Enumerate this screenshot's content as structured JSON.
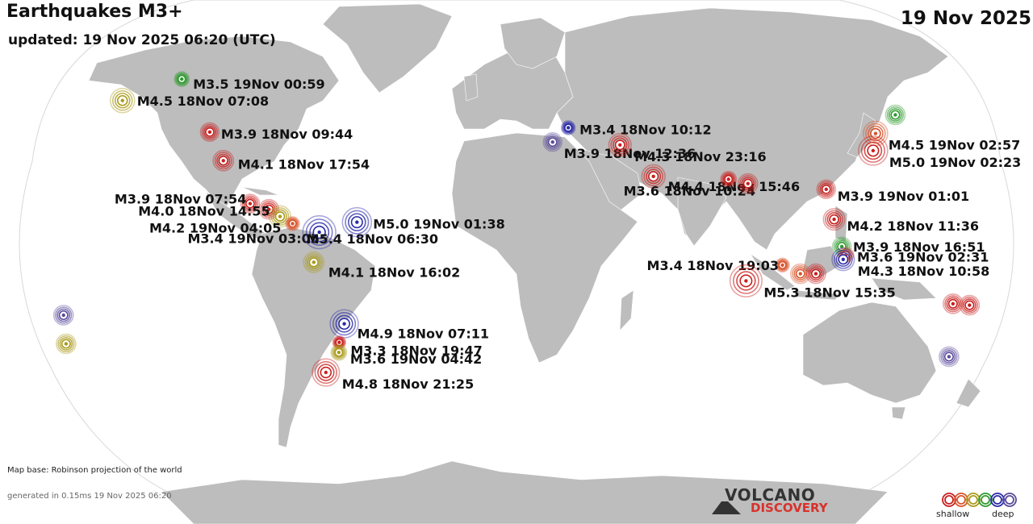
{
  "header": {
    "title": "Earthquakes M3+",
    "updated": "updated: 19 Nov 2025 06:20 (UTC)",
    "date": "19 Nov 2025"
  },
  "colors": {
    "ocean": "#ffffff",
    "land": "#bdbdbd",
    "shallow_red": "#c8201e",
    "orange": "#d9532a",
    "olive": "#a99a1a",
    "green": "#2e9a2e",
    "blue": "#2a2aa8",
    "purple": "#5a4a9a"
  },
  "quakes": [
    {
      "label": "M3.5 19Nov 00:59",
      "color": "green",
      "lon": -141,
      "lat": 62.5
    },
    {
      "label": "M4.5 18Nov 07:08",
      "color": "olive",
      "lon": -163,
      "lat": 55
    },
    {
      "label": "M3.9 18Nov 09:44",
      "color": "red",
      "lon": -124,
      "lat": 44
    },
    {
      "label": "M4.1 18Nov 17:54",
      "color": "red",
      "lon": -116.5,
      "lat": 34
    },
    {
      "label": "M3.9 18Nov 07:54",
      "color": "red",
      "lon": -104,
      "lat": 19
    },
    {
      "label": "M4.0 18Nov 14:55",
      "color": "red",
      "lon": -96.5,
      "lat": 17
    },
    {
      "label": "M4.2 19Nov 04:05",
      "color": "olive",
      "lon": -92,
      "lat": 14.5
    },
    {
      "label": "M3.4 19Nov 03:05",
      "color": "orange",
      "lon": -87,
      "lat": 12
    },
    {
      "label": "M5.4 18Nov 06:30",
      "color": "blue",
      "lon": -76.5,
      "lat": 9
    },
    {
      "label": "M5.0 19Nov 01:38",
      "color": "blue",
      "lon": -62,
      "lat": 12.5
    },
    {
      "label": "M4.1 18Nov 16:02",
      "color": "olive",
      "lon": -78.5,
      "lat": -1.5
    },
    {
      "label": "M4.9 18Nov 07:11",
      "color": "blue",
      "lon": -67.5,
      "lat": -23
    },
    {
      "label": "M3.3 18Nov 19:47",
      "color": "red",
      "lon": -70,
      "lat": -29.5
    },
    {
      "label": "M3.6 19Nov 04:42",
      "color": "olive",
      "lon": -70.5,
      "lat": -33
    },
    {
      "label": "M4.8 18Nov 21:25",
      "color": "red",
      "lon": -76.5,
      "lat": -40
    },
    {
      "label": "M3.4 18Nov 10:12",
      "color": "blue",
      "lon": 21,
      "lat": 45.5
    },
    {
      "label": "M3.9 18Nov 12:36",
      "color": "purple",
      "lon": 14.5,
      "lat": 40.5
    },
    {
      "label": "M4.3 18Nov 23:16",
      "color": "red",
      "lon": 41.5,
      "lat": 39.5
    },
    {
      "label": "M4.4 18Nov 15:46",
      "color": "red",
      "lon": 54,
      "lat": 28.5
    },
    {
      "label": "M3.6 18Nov 10:24",
      "color": "red",
      "lon": 83.5,
      "lat": 27.5
    },
    {
      "label": "",
      "color": "red",
      "lon": 91,
      "lat": 26
    },
    {
      "label": "M3.9 19Nov 01:01",
      "color": "red",
      "lon": 121.5,
      "lat": 24
    },
    {
      "label": "M4.5 19Nov 02:57",
      "color": "orange",
      "lon": 145,
      "lat": 43.5
    },
    {
      "label": "",
      "color": "green",
      "lon": 155,
      "lat": 50
    },
    {
      "label": "M5.0 19Nov 02:23",
      "color": "red",
      "lon": 142.5,
      "lat": 37.5
    },
    {
      "label": "M4.2 18Nov 11:36",
      "color": "red",
      "lon": 123.5,
      "lat": 13.5
    },
    {
      "label": "M3.9 18Nov 16:51",
      "color": "green",
      "lon": 126,
      "lat": 4
    },
    {
      "label": "M3.6 19Nov 02:31",
      "color": "orange",
      "lon": 127.5,
      "lat": 1
    },
    {
      "label": "M4.3 18Nov 10:58",
      "color": "blue",
      "lon": 126.5,
      "lat": -0.5
    },
    {
      "label": "M3.4 18Nov 19:03",
      "color": "orange",
      "lon": 103,
      "lat": -2.5
    },
    {
      "label": "",
      "color": "orange",
      "lon": 110,
      "lat": -5.5
    },
    {
      "label": "",
      "color": "red",
      "lon": 116,
      "lat": -5.5
    },
    {
      "label": "M5.3 18Nov 15:35",
      "color": "red",
      "lon": 89,
      "lat": -8
    },
    {
      "label": "",
      "color": "red",
      "lon": 170,
      "lat": -16
    },
    {
      "label": "",
      "color": "red",
      "lon": 176.5,
      "lat": -16.5
    },
    {
      "label": "",
      "color": "purple",
      "lon": -177,
      "lat": -20
    },
    {
      "label": "",
      "color": "olive",
      "lon": -178,
      "lat": -30
    },
    {
      "label": "",
      "color": "purple",
      "lon": 172,
      "lat": -34.5
    }
  ],
  "footer": {
    "credit": "Map base: Robinson projection of the world",
    "generated": "generated in 0.15ms 19 Nov 2025 06:20",
    "logo_top": "VOLCANO",
    "logo_bottom": "DISCOVERY",
    "legend_shallow": "shallow",
    "legend_deep": "deep"
  }
}
